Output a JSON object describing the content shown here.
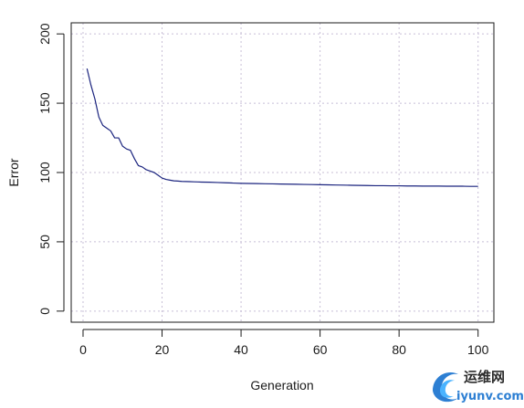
{
  "chart_data": {
    "type": "line",
    "xlabel": "Generation",
    "ylabel": "Error",
    "xlim": [
      -3,
      104
    ],
    "ylim": [
      -8,
      208
    ],
    "x_ticks": [
      0,
      20,
      40,
      60,
      80,
      100
    ],
    "y_ticks": [
      0,
      50,
      100,
      150,
      200
    ],
    "grid": true,
    "grid_style": "dotted",
    "series": [
      {
        "color": "#1a237e",
        "x": [
          1,
          2,
          3,
          4,
          5,
          6,
          7,
          8,
          9,
          10,
          11,
          12,
          13,
          14,
          15,
          16,
          17,
          18,
          19,
          20,
          21,
          22,
          23,
          24,
          25,
          26,
          27,
          28,
          29,
          30,
          32,
          34,
          36,
          38,
          40,
          42,
          44,
          46,
          48,
          50,
          52,
          54,
          56,
          58,
          60,
          62,
          64,
          66,
          68,
          70,
          72,
          74,
          76,
          78,
          80,
          82,
          84,
          86,
          88,
          90,
          92,
          94,
          96,
          98,
          100
        ],
        "y": [
          175,
          163,
          153,
          140,
          134,
          132,
          130,
          125,
          125,
          119,
          117,
          116,
          110,
          105,
          104,
          102,
          101,
          100,
          98,
          96,
          95,
          94.5,
          94,
          93.8,
          93.6,
          93.5,
          93.4,
          93.3,
          93.2,
          93.1,
          93,
          92.8,
          92.6,
          92.4,
          92.2,
          92.1,
          92,
          91.9,
          91.8,
          91.7,
          91.6,
          91.5,
          91.4,
          91.3,
          91.2,
          91.1,
          91,
          90.9,
          90.8,
          90.7,
          90.6,
          90.5,
          90.5,
          90.4,
          90.4,
          90.3,
          90.3,
          90.2,
          90.2,
          90.2,
          90.1,
          90.1,
          90.1,
          90,
          90
        ]
      }
    ]
  },
  "watermark": {
    "site_name_cn": "运维网",
    "site_url": "iyunv.com",
    "colors": [
      "#2d7fd3",
      "#4ab3ff"
    ]
  }
}
